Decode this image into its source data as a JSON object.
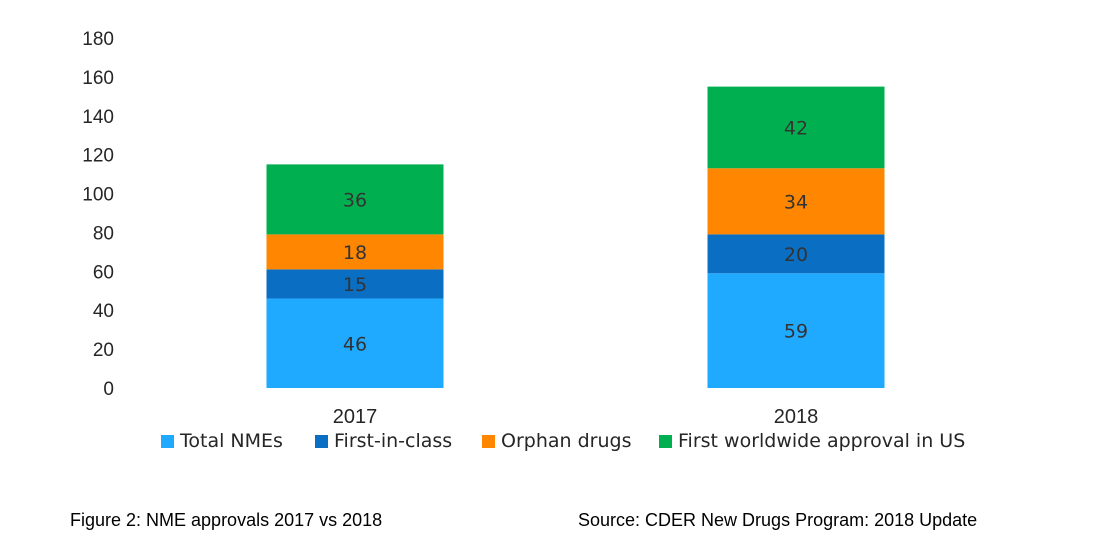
{
  "chart_data": {
    "type": "bar",
    "stacked": true,
    "categories": [
      "2017",
      "2018"
    ],
    "series": [
      {
        "name": "Total NMEs",
        "values": [
          46,
          59
        ],
        "color": "#1FA9FF"
      },
      {
        "name": "First-in-class",
        "values": [
          15,
          20
        ],
        "color": "#0A6FC2"
      },
      {
        "name": "Orphan drugs",
        "values": [
          18,
          34
        ],
        "color": "#FF8600"
      },
      {
        "name": "First worldwide approval in US",
        "values": [
          36,
          42
        ],
        "color": "#00B050"
      }
    ],
    "yticks": [
      "0",
      "20",
      "40",
      "60",
      "80",
      "100",
      "120",
      "140",
      "160",
      "180"
    ],
    "ylim": [
      0,
      180
    ],
    "grid": false,
    "legend_position": "bottom"
  },
  "captions": {
    "figure": "Figure 2: NME approvals 2017 vs 2018",
    "source": "Source: CDER New Drugs Program: 2018 Update"
  }
}
